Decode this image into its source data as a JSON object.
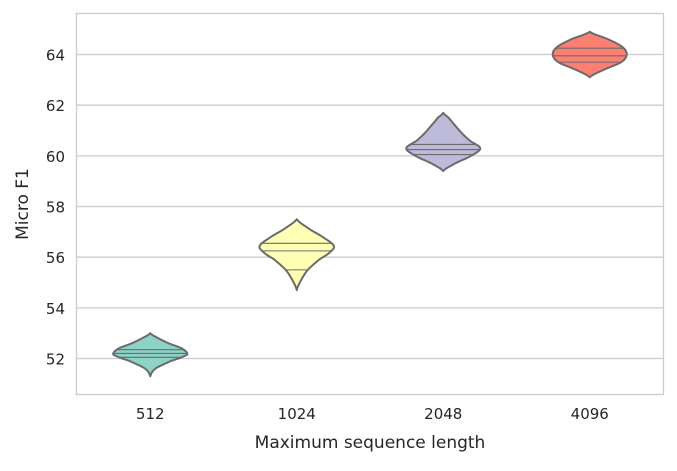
{
  "chart_data": {
    "type": "violin",
    "xlabel": "Maximum sequence length",
    "ylabel": "Micro F1",
    "ylim": [
      50.6,
      65.6
    ],
    "yticks": [
      52,
      54,
      56,
      58,
      60,
      62,
      64
    ],
    "grid": "horizontal",
    "inner": "quartile",
    "categories": [
      "512",
      "1024",
      "2048",
      "4096"
    ],
    "series": [
      {
        "category": "512",
        "color": "#8dd3c7",
        "min": 51.3,
        "max": 53.0,
        "q1": 52.05,
        "median": 52.2,
        "q3": 52.35,
        "profile": [
          [
            51.3,
            0.0
          ],
          [
            51.6,
            0.14
          ],
          [
            51.9,
            0.55
          ],
          [
            52.1,
            0.92
          ],
          [
            52.2,
            1.0
          ],
          [
            52.4,
            0.85
          ],
          [
            52.6,
            0.5
          ],
          [
            52.8,
            0.22
          ],
          [
            53.0,
            0.0
          ]
        ]
      },
      {
        "category": "1024",
        "color": "#ffffb3",
        "min": 54.7,
        "max": 57.5,
        "q1": 55.5,
        "median": 56.25,
        "q3": 56.55,
        "profile": [
          [
            54.7,
            0.0
          ],
          [
            55.1,
            0.12
          ],
          [
            55.5,
            0.3
          ],
          [
            55.9,
            0.6
          ],
          [
            56.2,
            0.9
          ],
          [
            56.45,
            1.0
          ],
          [
            56.8,
            0.7
          ],
          [
            57.1,
            0.35
          ],
          [
            57.5,
            0.0
          ]
        ]
      },
      {
        "category": "2048",
        "color": "#bebada",
        "min": 59.4,
        "max": 61.7,
        "q1": 60.05,
        "median": 60.25,
        "q3": 60.45,
        "profile": [
          [
            59.4,
            0.0
          ],
          [
            59.7,
            0.32
          ],
          [
            60.0,
            0.75
          ],
          [
            60.3,
            1.0
          ],
          [
            60.6,
            0.72
          ],
          [
            60.9,
            0.5
          ],
          [
            61.2,
            0.32
          ],
          [
            61.5,
            0.15
          ],
          [
            61.7,
            0.0
          ]
        ]
      },
      {
        "category": "4096",
        "color": "#fb8072",
        "min": 63.1,
        "max": 64.9,
        "q1": 63.7,
        "median": 63.95,
        "q3": 64.25,
        "profile": [
          [
            63.1,
            0.0
          ],
          [
            63.4,
            0.38
          ],
          [
            63.7,
            0.85
          ],
          [
            64.0,
            1.0
          ],
          [
            64.3,
            0.88
          ],
          [
            64.6,
            0.5
          ],
          [
            64.9,
            0.0
          ]
        ]
      }
    ]
  }
}
